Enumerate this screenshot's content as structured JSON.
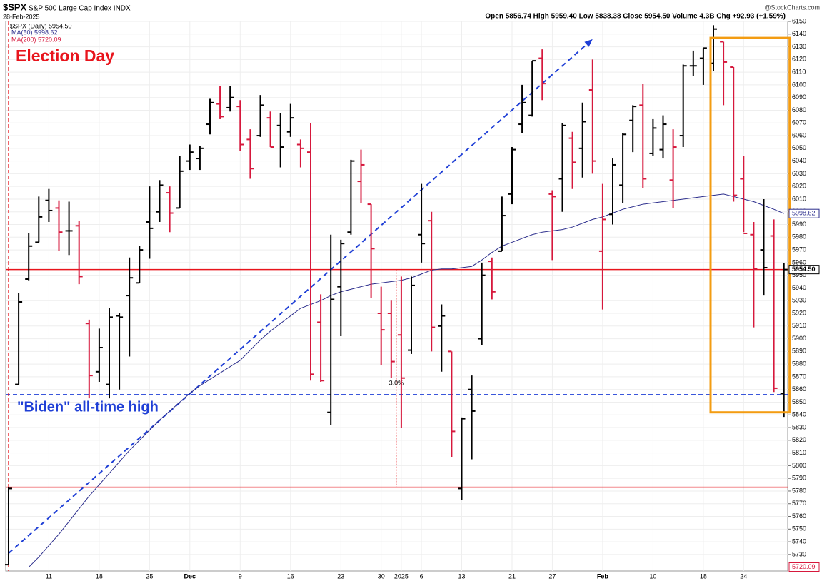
{
  "chart_data": {
    "type": "ohlc",
    "symbol": "$SPX",
    "subtitle": "S&P 500 Large Cap Index INDX",
    "date": "28-Feb-2025",
    "quote": "Open 5856.74  High 5959.40  Low 5838.38  Close 5954.50  Volume 4.3B  Chg +92.93 (+1.59%)",
    "watermark": "@StockCharts.com",
    "legend": [
      "$SPX (Daily) 5954.50",
      "MA(50) 5998.62",
      "MA(200) 5720.09"
    ],
    "categories": [
      null,
      null,
      null,
      null,
      "11",
      null,
      null,
      null,
      null,
      "18",
      null,
      null,
      null,
      null,
      "25",
      null,
      null,
      null,
      "Dec",
      null,
      null,
      null,
      null,
      "9",
      null,
      null,
      null,
      null,
      "16",
      null,
      null,
      null,
      null,
      "23",
      null,
      null,
      null,
      "30",
      null,
      "2025",
      null,
      "6",
      null,
      null,
      null,
      "13",
      null,
      null,
      null,
      null,
      "21",
      null,
      null,
      null,
      "27",
      null,
      null,
      null,
      null,
      "Feb",
      null,
      null,
      null,
      null,
      "10",
      null,
      null,
      null,
      null,
      "18",
      null,
      null,
      null,
      "24",
      null,
      null,
      null,
      null
    ],
    "ohlc": {
      "up_color": "#000000",
      "down_color": "#d6183c",
      "open": [
        5722,
        5864,
        5947,
        5976,
        6009,
        6003,
        5985,
        5989,
        5912,
        5874,
        5864,
        5918,
        5934,
        5944,
        5992,
        6000,
        6015,
        6003,
        6040,
        6042,
        6069,
        6085,
        6082,
        6083,
        6057,
        6060,
        6074,
        6068,
        6063,
        6053,
        6047,
        5913,
        5842,
        5941,
        5984,
        6024,
        6006,
        5920,
        5920,
        5903,
        5891,
        5982,
        5993,
        5910,
        5890,
        5782,
        5860,
        5900,
        5961,
        5969,
        6014,
        6069,
        6076,
        6121,
        6014,
        6026,
        6058,
        6050,
        6096,
        5969,
        5998,
        6021,
        6072,
        6084,
        6046,
        6049,
        6025,
        6060,
        6115,
        6121,
        6117,
        6134,
        6114,
        6026,
        5982,
        5970,
        5981,
        5856.74
      ],
      "high": [
        5783,
        5936,
        5983,
        6012,
        6018,
        6009,
        6008,
        5993,
        5915,
        5908,
        5924,
        5920,
        5964,
        5973,
        6020,
        6025,
        6020,
        6044,
        6053,
        6052,
        6089,
        6099,
        6099,
        6088,
        6065,
        6092,
        6079,
        6078,
        6085,
        6057,
        6070,
        5935,
        5982,
        5978,
        6041,
        6049,
        6006,
        5941,
        5930,
        5949,
        5949,
        6022,
        6000,
        5927,
        5890,
        5838,
        5871,
        5960,
        5964,
        6012,
        6051,
        6100,
        6119,
        6128,
        6017,
        6070,
        6063,
        6086,
        6120,
        6022,
        6042,
        6062,
        6084,
        6101,
        6073,
        6076,
        6065,
        6116,
        6127,
        6129,
        6147,
        6134,
        6114,
        6044,
        5992,
        6010,
        5994,
        5959.4
      ],
      "low": [
        5722,
        5864,
        5946,
        5976,
        5992,
        5969,
        5966,
        5943,
        5853,
        5866,
        5853,
        5860,
        5886,
        5944,
        5963,
        5992,
        5984,
        6003,
        6033,
        6033,
        6061,
        6073,
        6079,
        6048,
        6026,
        6059,
        6051,
        6035,
        6059,
        6035,
        5867,
        5866,
        5832,
        5902,
        5982,
        6007,
        5932,
        5879,
        5869,
        5830,
        5888,
        5960,
        5890,
        5874,
        5807,
        5773,
        5805,
        5895,
        5931,
        5969,
        6006,
        6062,
        6075,
        6088,
        5962,
        6000,
        6018,
        6027,
        6030,
        5923,
        5990,
        6007,
        6047,
        6019,
        6044,
        6042,
        6003,
        6051,
        6107,
        6100,
        6111,
        6084,
        6008,
        5984,
        5909,
        5934,
        5858,
        5838.38
      ],
      "close": [
        5782,
        5929,
        5973,
        5996,
        6001,
        5984,
        5985,
        5949,
        5871,
        5893,
        5917,
        5917,
        5948,
        5970,
        5987,
        6021,
        5999,
        6032,
        6047,
        6050,
        6086,
        6075,
        6090,
        6053,
        6034,
        6084,
        6051,
        6051,
        6074,
        6050,
        5872,
        5867,
        5931,
        5975,
        6040,
        6037,
        5971,
        5907,
        5882,
        5869,
        5942,
        5975,
        5909,
        5918,
        5827,
        5837,
        5843,
        5950,
        5937,
        5997,
        6049,
        6086,
        6119,
        6101,
        6012,
        6068,
        6039,
        6071,
        6040,
        5994,
        6037,
        6061,
        6083,
        6026,
        6066,
        6069,
        6051,
        6115,
        6115,
        6129,
        6144,
        6118,
        6013,
        5983,
        5955,
        5956,
        5861,
        5954.5
      ]
    },
    "series": [
      {
        "name": "MA(50)",
        "color": "#2b2d8c",
        "values": [
          null,
          null,
          5720,
          5728,
          5737,
          5746,
          5756,
          5766,
          5776,
          5785,
          5794,
          5803,
          5812,
          5820,
          5828,
          5836,
          5843,
          5850,
          5857,
          5863,
          5868,
          5873,
          5878,
          5883,
          5891,
          5899,
          5906,
          5912,
          5918,
          5924,
          5927,
          5930,
          5934,
          5937,
          5939,
          5941,
          5943,
          5944,
          5945,
          5946,
          5948,
          5951,
          5954,
          5955,
          5955,
          5956,
          5957,
          5962,
          5968,
          5973,
          5976,
          5979,
          5982,
          5984,
          5985,
          5986,
          5988,
          5991,
          5994,
          5996,
          5999,
          6002,
          6004,
          6006,
          6007,
          6008,
          6009,
          6010,
          6011,
          6012,
          6013,
          6014,
          6012,
          6010,
          6008,
          6005,
          6002,
          5998.62
        ]
      }
    ],
    "last_labels": [
      {
        "value": 5998.62,
        "label": "5998.62",
        "color": "#2b2d8c"
      },
      {
        "value": 5954.5,
        "label": "5954.50",
        "color": "#000000"
      },
      {
        "value": 5720.09,
        "label": "5720.09",
        "color": "#d6183c"
      }
    ],
    "ylim": [
      5717,
      6150
    ],
    "yticks": [
      5730,
      5740,
      5750,
      5760,
      5770,
      5780,
      5790,
      5800,
      5810,
      5820,
      5830,
      5840,
      5850,
      5860,
      5870,
      5880,
      5890,
      5900,
      5910,
      5920,
      5930,
      5940,
      5950,
      5960,
      5970,
      5980,
      5990,
      6000,
      6010,
      6020,
      6030,
      6040,
      6050,
      6060,
      6070,
      6080,
      6090,
      6100,
      6110,
      6120,
      6130,
      6140,
      6150
    ],
    "grid": true,
    "hlines": [
      {
        "value": 5954.5,
        "color": "#e8141c"
      },
      {
        "value": 5783,
        "color": "#e8141c"
      },
      {
        "value": 5856,
        "color": "#1f3fd6"
      }
    ],
    "election": {
      "text": "Election Day",
      "category_index": 0,
      "color": "#e8141c"
    },
    "biden": {
      "text": "\"Biden\" all-time high",
      "color": "#1f3fd6"
    },
    "trendline": {
      "from_index": 0,
      "from_value": 5731,
      "to_index": 58,
      "to_value": 6136,
      "color": "#1f3fd6"
    },
    "measure": {
      "text": "3.0%",
      "category_index": 38,
      "from_value": 5954.5,
      "to_value": 5783,
      "color": "#e8141c"
    },
    "box": {
      "from_index": 70,
      "to_index": 77,
      "top": 6137,
      "bottom": 5842,
      "color": "#f39c12"
    }
  }
}
